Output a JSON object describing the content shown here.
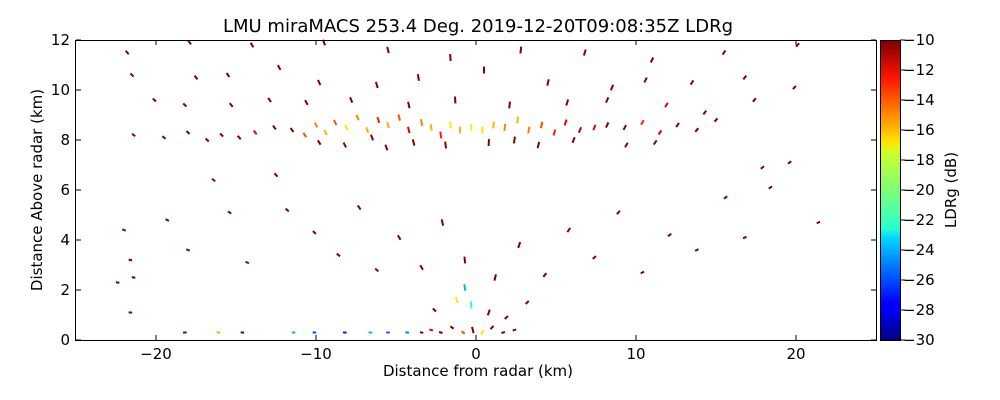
{
  "chart_data": {
    "type": "scatter",
    "title": "LMU miraMACS 253.4 Deg. 2019-12-20T09:08:35Z  LDRg",
    "xlabel": "Distance from radar (km)",
    "ylabel": "Distance Above radar  (km)",
    "xlim": [
      -25,
      25
    ],
    "ylim": [
      0,
      12
    ],
    "xticks": [
      -20,
      -10,
      0,
      10,
      20
    ],
    "xtick_labels": [
      "−20",
      "−10",
      "0",
      "10",
      "20"
    ],
    "yticks": [
      0,
      2,
      4,
      6,
      8,
      10,
      12
    ],
    "ytick_labels": [
      "0",
      "2",
      "4",
      "6",
      "8",
      "10",
      "12"
    ],
    "grid": false,
    "colorbar": {
      "label": "LDRg (dB)",
      "colormap": "jet",
      "range": [
        -30,
        -10
      ],
      "ticks": [
        -10,
        -12,
        -14,
        -16,
        -18,
        -20,
        -22,
        -24,
        -26,
        -28,
        -30
      ],
      "tick_labels": [
        "−10",
        "−12",
        "−14",
        "−16",
        "−18",
        "−20",
        "−22",
        "−24",
        "−26",
        "−28",
        "−30"
      ]
    },
    "echoes_km_db": [
      [
        -21.8,
        11.5,
        -10
      ],
      [
        -17.9,
        11.9,
        -10
      ],
      [
        -14,
        11.8,
        -10
      ],
      [
        -9.5,
        11.9,
        -10
      ],
      [
        -5.5,
        11.6,
        -10
      ],
      [
        -1.6,
        11.3,
        -10
      ],
      [
        2.8,
        11.6,
        -10
      ],
      [
        6.8,
        11.5,
        -10
      ],
      [
        11,
        11.2,
        -10
      ],
      [
        15.5,
        11.5,
        -10
      ],
      [
        20.1,
        11.8,
        -10
      ],
      [
        -21.5,
        10.6,
        -10
      ],
      [
        -17.5,
        10.5,
        -10
      ],
      [
        -15.5,
        10.6,
        -10
      ],
      [
        -12.3,
        10.9,
        -10
      ],
      [
        -9.8,
        10.3,
        -10
      ],
      [
        -6.2,
        10.2,
        -10
      ],
      [
        -3.6,
        10.5,
        -10
      ],
      [
        0.5,
        10.8,
        -10
      ],
      [
        4.5,
        10.3,
        -10
      ],
      [
        8.5,
        10.1,
        -10
      ],
      [
        10.6,
        10.4,
        -10
      ],
      [
        13.5,
        10.3,
        -10
      ],
      [
        16.8,
        10.5,
        -10
      ],
      [
        19.9,
        10.1,
        -10
      ],
      [
        -20.1,
        9.6,
        -10
      ],
      [
        -18.2,
        9.4,
        -10
      ],
      [
        -15.3,
        9.4,
        -10
      ],
      [
        -12.9,
        9.6,
        -10
      ],
      [
        -10.6,
        9.5,
        -10
      ],
      [
        -7.8,
        9.6,
        -10
      ],
      [
        -4.2,
        9.4,
        -10
      ],
      [
        -1.3,
        9.6,
        -10
      ],
      [
        2.1,
        9.4,
        -10
      ],
      [
        5.7,
        9.5,
        -10
      ],
      [
        8.2,
        9.6,
        -10
      ],
      [
        11.9,
        9.4,
        -12
      ],
      [
        14.3,
        9.1,
        -10
      ],
      [
        17.4,
        9.6,
        -10
      ],
      [
        -21.4,
        8.2,
        -10
      ],
      [
        -19.5,
        8.1,
        -10
      ],
      [
        -18,
        8.3,
        -10
      ],
      [
        -16.8,
        8.0,
        -10
      ],
      [
        -15.9,
        8.2,
        -10
      ],
      [
        -14.8,
        8.1,
        -10
      ],
      [
        -13.8,
        8.3,
        -12
      ],
      [
        -12.6,
        8.5,
        -10
      ],
      [
        -11.5,
        8.4,
        -10
      ],
      [
        -10.7,
        8.2,
        -14
      ],
      [
        -10,
        8.6,
        -15
      ],
      [
        -9.4,
        8.3,
        -16
      ],
      [
        -8.8,
        8.7,
        -14
      ],
      [
        -8.1,
        8.5,
        -17
      ],
      [
        -7.4,
        8.9,
        -15
      ],
      [
        -6.8,
        8.4,
        -16
      ],
      [
        -6.1,
        8.8,
        -13
      ],
      [
        -5.5,
        8.6,
        -16
      ],
      [
        -4.8,
        8.9,
        -14
      ],
      [
        -4.2,
        8.4,
        -12
      ],
      [
        -3.4,
        8.7,
        -15
      ],
      [
        -2.8,
        8.5,
        -16
      ],
      [
        -2.2,
        8.2,
        -13
      ],
      [
        -1.6,
        8.6,
        -17
      ],
      [
        -1,
        8.4,
        -16
      ],
      [
        -0.3,
        8.5,
        -18
      ],
      [
        0.4,
        8.4,
        -17
      ],
      [
        1.1,
        8.6,
        -16
      ],
      [
        1.8,
        8.5,
        -15
      ],
      [
        2.6,
        8.8,
        -16
      ],
      [
        3.3,
        8.4,
        -15
      ],
      [
        4.1,
        8.6,
        -14
      ],
      [
        4.9,
        8.3,
        -13
      ],
      [
        5.6,
        8.7,
        -12
      ],
      [
        6.5,
        8.4,
        -11
      ],
      [
        7.4,
        8.5,
        -12
      ],
      [
        8.2,
        8.6,
        -10
      ],
      [
        9.3,
        8.5,
        -10
      ],
      [
        10.4,
        8.7,
        -13
      ],
      [
        11.5,
        8.3,
        -12
      ],
      [
        12.6,
        8.6,
        -10
      ],
      [
        13.8,
        8.4,
        -10
      ],
      [
        15.0,
        8.8,
        -10
      ],
      [
        -9.8,
        7.9,
        -10
      ],
      [
        -8.2,
        7.8,
        -10
      ],
      [
        -6.5,
        8.1,
        -10
      ],
      [
        -5.6,
        7.7,
        -10
      ],
      [
        -3.9,
        7.9,
        -10
      ],
      [
        -1.9,
        7.8,
        -10
      ],
      [
        0.8,
        7.9,
        -10
      ],
      [
        2.4,
        8.0,
        -10
      ],
      [
        3.9,
        7.8,
        -10
      ],
      [
        6.1,
        8.0,
        -10
      ],
      [
        9.4,
        7.8,
        -10
      ],
      [
        11.2,
        7.9,
        -10
      ],
      [
        -22,
        4.4,
        -10
      ],
      [
        -21.6,
        3.2,
        -10
      ],
      [
        -22.4,
        2.3,
        -10
      ],
      [
        -21.4,
        2.5,
        -10
      ],
      [
        -21.6,
        1.1,
        -10
      ],
      [
        -19.3,
        4.8,
        -10
      ],
      [
        -18,
        3.6,
        -10
      ],
      [
        -16.4,
        6.4,
        -10
      ],
      [
        -15.4,
        5.1,
        -10
      ],
      [
        -14.3,
        3.1,
        -10
      ],
      [
        -12.5,
        6.6,
        -10
      ],
      [
        -11.8,
        5.2,
        -10
      ],
      [
        -10.1,
        4.3,
        -10
      ],
      [
        -8.6,
        3.4,
        -10
      ],
      [
        -7.3,
        5.3,
        -10
      ],
      [
        -6.2,
        2.8,
        -10
      ],
      [
        -4.8,
        4.1,
        -10
      ],
      [
        -3.4,
        2.9,
        -10
      ],
      [
        -2.1,
        4.7,
        -10
      ],
      [
        -0.7,
        3.2,
        -10
      ],
      [
        1.2,
        2.5,
        -10
      ],
      [
        2.7,
        3.8,
        -10
      ],
      [
        4.3,
        2.6,
        -10
      ],
      [
        5.8,
        4.4,
        -10
      ],
      [
        7.4,
        3.3,
        -10
      ],
      [
        8.9,
        5.1,
        -10
      ],
      [
        10.4,
        2.7,
        -10
      ],
      [
        12.1,
        4.2,
        -10
      ],
      [
        13.8,
        3.6,
        -10
      ],
      [
        15.6,
        5.7,
        -10
      ],
      [
        16.8,
        4.1,
        -10
      ],
      [
        18.4,
        6.1,
        -10
      ],
      [
        19.6,
        7.1,
        -10
      ],
      [
        21.4,
        4.7,
        -10
      ],
      [
        17.9,
        6.9,
        -10
      ],
      [
        -18.2,
        0.3,
        -10
      ],
      [
        -16.1,
        0.3,
        -16
      ],
      [
        -14.6,
        0.3,
        -10
      ],
      [
        -11.4,
        0.3,
        -24
      ],
      [
        -10.1,
        0.3,
        -26
      ],
      [
        -8.2,
        0.3,
        -27
      ],
      [
        -6.6,
        0.3,
        -24
      ],
      [
        -5.5,
        0.3,
        -26
      ],
      [
        -4.3,
        0.3,
        -25
      ],
      [
        -3.4,
        0.3,
        -10
      ],
      [
        -2.8,
        0.4,
        -12
      ],
      [
        -2.2,
        0.3,
        -10
      ],
      [
        -1.5,
        0.5,
        -10
      ],
      [
        -0.8,
        0.3,
        -14
      ],
      [
        -0.2,
        0.4,
        -10
      ],
      [
        0.4,
        0.3,
        -17
      ],
      [
        1,
        0.5,
        -10
      ],
      [
        1.7,
        0.3,
        -10
      ],
      [
        2.4,
        0.4,
        -10
      ],
      [
        -1.2,
        1.6,
        -17
      ],
      [
        -0.3,
        1.4,
        -22
      ],
      [
        -0.7,
        2.1,
        -24
      ],
      [
        -2.6,
        1.2,
        -10
      ],
      [
        0.8,
        1.1,
        -10
      ],
      [
        1.9,
        0.9,
        -10
      ],
      [
        3.2,
        1.5,
        -10
      ]
    ]
  }
}
